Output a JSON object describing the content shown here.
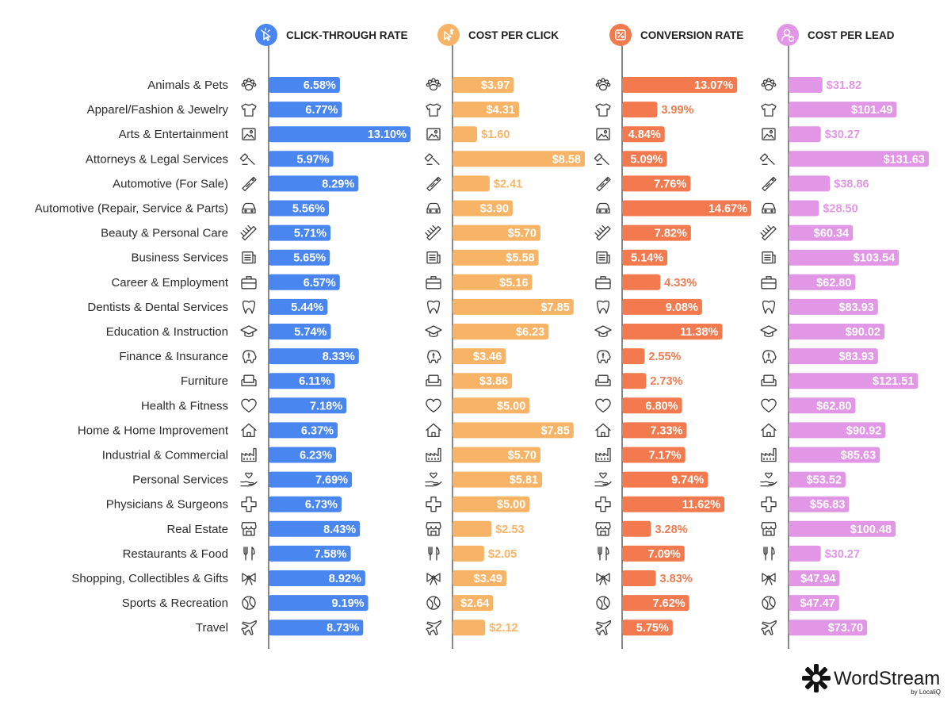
{
  "chart_data": {
    "type": "bar",
    "orientation": "horizontal",
    "categories": [
      "Animals & Pets",
      "Apparel/Fashion & Jewelry",
      "Arts & Entertainment",
      "Attorneys & Legal Services",
      "Automotive (For Sale)",
      "Automotive (Repair, Service & Parts)",
      "Beauty & Personal Care",
      "Business Services",
      "Career & Employment",
      "Dentists & Dental Services",
      "Education & Instruction",
      "Finance & Insurance",
      "Furniture",
      "Health & Fitness",
      "Home & Home Improvement",
      "Industrial & Commercial",
      "Personal Services",
      "Physicians & Surgeons",
      "Real Estate",
      "Restaurants & Food",
      "Shopping, Collectibles & Gifts",
      "Sports & Recreation",
      "Travel"
    ],
    "category_icons": [
      "paw-icon",
      "tshirt-icon",
      "picture-icon",
      "gavel-icon",
      "price-tag-icon",
      "car-icon",
      "comb-icon",
      "newspaper-icon",
      "briefcase-icon",
      "tooth-icon",
      "graduation-cap-icon",
      "piggy-bank-icon",
      "sofa-icon",
      "heart-icon",
      "house-icon",
      "factory-icon",
      "hand-heart-icon",
      "medical-cross-icon",
      "storefront-icon",
      "fork-knife-icon",
      "gift-bow-icon",
      "ball-icon",
      "airplane-icon"
    ],
    "series": [
      {
        "name": "CLICK-THROUGH RATE",
        "icon": "cursor-click-icon",
        "color": "#4a86f0",
        "xlim": [
          0,
          13.1
        ],
        "values": [
          6.58,
          6.77,
          13.1,
          5.97,
          8.29,
          5.56,
          5.71,
          5.65,
          6.57,
          5.44,
          5.74,
          8.33,
          6.11,
          7.18,
          6.37,
          6.23,
          7.69,
          6.73,
          8.43,
          7.58,
          8.92,
          9.19,
          8.73
        ],
        "labels": [
          "6.58%",
          "6.77%",
          "13.10%",
          "5.97%",
          "8.29%",
          "5.56%",
          "5.71%",
          "5.65%",
          "6.57%",
          "5.44%",
          "5.74%",
          "8.33%",
          "6.11%",
          "7.18%",
          "6.37%",
          "6.23%",
          "7.69%",
          "6.73%",
          "8.43%",
          "7.58%",
          "8.92%",
          "9.19%",
          "8.73%"
        ]
      },
      {
        "name": "COST PER CLICK",
        "icon": "dollar-click-icon",
        "color": "#f8b466",
        "xlim": [
          0,
          8.58
        ],
        "values": [
          3.97,
          4.31,
          1.6,
          8.58,
          2.41,
          3.9,
          5.7,
          5.58,
          5.16,
          7.85,
          6.23,
          3.46,
          3.86,
          5.0,
          7.85,
          5.7,
          5.81,
          5.0,
          2.53,
          2.05,
          3.49,
          2.64,
          2.12
        ],
        "labels": [
          "$3.97",
          "$4.31",
          "$1.60",
          "$8.58",
          "$2.41",
          "$3.90",
          "$5.70",
          "$5.58",
          "$5.16",
          "$7.85",
          "$6.23",
          "$3.46",
          "$3.86",
          "$5.00",
          "$7.85",
          "$5.70",
          "$5.81",
          "$5.00",
          "$2.53",
          "$2.05",
          "$3.49",
          "$2.64",
          "$2.12"
        ]
      },
      {
        "name": "CONVERSION RATE",
        "icon": "percent-badge-icon",
        "color": "#f27a4e",
        "xlim": [
          0,
          14.67
        ],
        "values": [
          13.07,
          3.99,
          4.84,
          5.09,
          7.76,
          14.67,
          7.82,
          5.14,
          4.33,
          9.08,
          11.38,
          2.55,
          2.73,
          6.8,
          7.33,
          7.17,
          9.74,
          11.62,
          3.28,
          7.09,
          3.83,
          7.62,
          5.75
        ],
        "labels": [
          "13.07%",
          "3.99%",
          "4.84%",
          "5.09%",
          "7.76%",
          "14.67%",
          "7.82%",
          "5.14%",
          "4.33%",
          "9.08%",
          "11.38%",
          "2.55%",
          "2.73%",
          "6.80%",
          "7.33%",
          "7.17%",
          "9.74%",
          "11.62%",
          "3.28%",
          "7.09%",
          "3.83%",
          "7.62%",
          "5.75%"
        ]
      },
      {
        "name": "COST PER LEAD",
        "icon": "user-dollar-icon",
        "color": "#e197e6",
        "xlim": [
          0,
          131.63
        ],
        "values": [
          31.82,
          101.49,
          30.27,
          131.63,
          38.86,
          28.5,
          60.34,
          103.54,
          62.8,
          83.93,
          90.02,
          83.93,
          121.51,
          62.8,
          90.92,
          85.63,
          53.52,
          56.83,
          100.48,
          30.27,
          47.94,
          47.47,
          73.7
        ],
        "labels": [
          "$31.82",
          "$101.49",
          "$30.27",
          "$131.63",
          "$38.86",
          "$28.50",
          "$60.34",
          "$103.54",
          "$62.80",
          "$83.93",
          "$90.02",
          "$83.93",
          "$121.51",
          "$62.80",
          "$90.92",
          "$85.63",
          "$53.52",
          "$56.83",
          "$100.48",
          "$30.27",
          "$47.94",
          "$47.47",
          "$73.70"
        ]
      }
    ],
    "title": "",
    "xlabel": "",
    "ylabel": "",
    "grid": false,
    "legend": "top"
  },
  "brand": {
    "name": "WordStream",
    "tagline": "by LocaliQ",
    "icon": "wordstream-logo-icon"
  }
}
